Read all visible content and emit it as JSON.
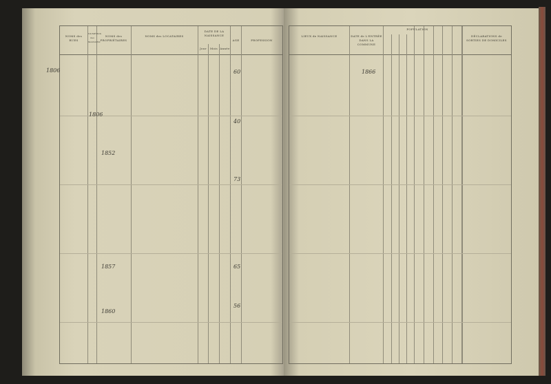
{
  "left_headers": {
    "rues": "NOMS des RUES",
    "numeros": "NUMÉROS des MAISONS",
    "proprietaires": "NOMS des PROPRIÉTAIRES",
    "locataires": "NOMS des LOCATAIRES",
    "date": "DATE DE LA NAISSANCE",
    "jour": "Jour",
    "mois": "Mois",
    "annee": "Année",
    "age": "AGE",
    "profession": "PROFESSION"
  },
  "right_headers": {
    "lieux": "LIEUX de NAISSANCE",
    "entree": "DATE de L'ENTRÉE DANS LA COMMUNE",
    "population": "POPULATION",
    "declarations": "DÉCLARATIONS de SORTIES DE DOMICILES"
  },
  "entries": [
    {
      "num": "1806",
      "age": "60",
      "year": "1866"
    },
    {
      "num": "1806",
      "age": "40"
    },
    {
      "num": "1852",
      "age": "73"
    },
    {
      "num": "1857",
      "age": "65"
    },
    {
      "num": "1860",
      "age": "56"
    }
  ]
}
